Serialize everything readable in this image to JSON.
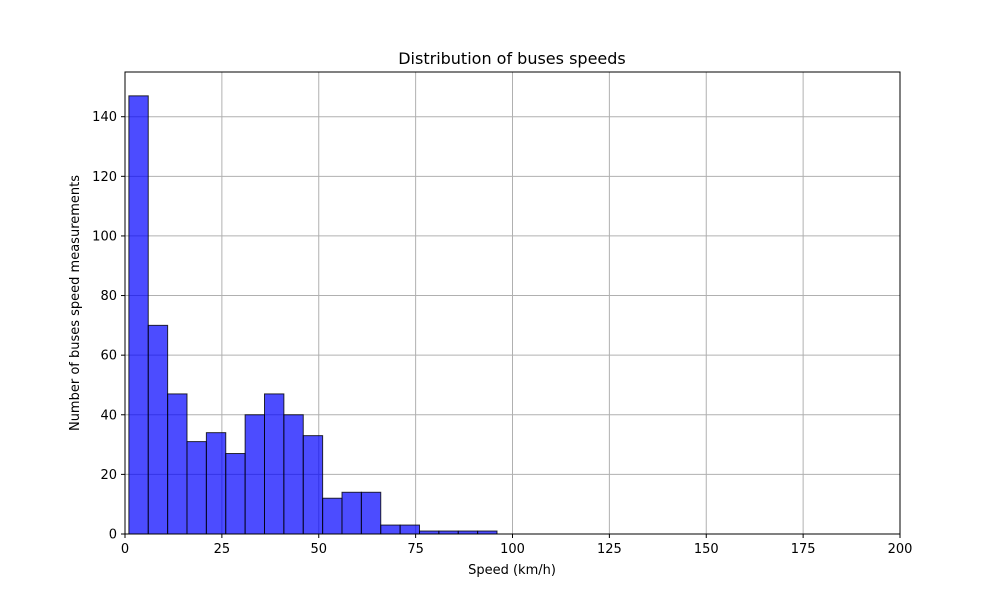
{
  "chart_data": {
    "type": "bar",
    "title": "Distribution of buses speeds",
    "xlabel": "Speed (km/h)",
    "ylabel": "Number of buses speed measurements",
    "xlim": [
      0,
      200
    ],
    "ylim": [
      0,
      155
    ],
    "grid": true,
    "x_ticks": [
      "0",
      "25",
      "50",
      "75",
      "100",
      "125",
      "150",
      "175",
      "200"
    ],
    "y_ticks": [
      "0",
      "20",
      "40",
      "60",
      "80",
      "100",
      "120",
      "140"
    ],
    "bins": [
      {
        "start": 1,
        "end": 6,
        "count": 147
      },
      {
        "start": 6,
        "end": 11,
        "count": 70
      },
      {
        "start": 11,
        "end": 16,
        "count": 47
      },
      {
        "start": 16,
        "end": 21,
        "count": 31
      },
      {
        "start": 21,
        "end": 26,
        "count": 34
      },
      {
        "start": 26,
        "end": 31,
        "count": 27
      },
      {
        "start": 31,
        "end": 36,
        "count": 40
      },
      {
        "start": 36,
        "end": 41,
        "count": 47
      },
      {
        "start": 41,
        "end": 46,
        "count": 40
      },
      {
        "start": 46,
        "end": 51,
        "count": 33
      },
      {
        "start": 51,
        "end": 56,
        "count": 12
      },
      {
        "start": 56,
        "end": 61,
        "count": 14
      },
      {
        "start": 61,
        "end": 66,
        "count": 14
      },
      {
        "start": 66,
        "end": 71,
        "count": 3
      },
      {
        "start": 71,
        "end": 76,
        "count": 3
      },
      {
        "start": 76,
        "end": 81,
        "count": 1
      },
      {
        "start": 81,
        "end": 86,
        "count": 1
      },
      {
        "start": 86,
        "end": 91,
        "count": 1
      },
      {
        "start": 91,
        "end": 96,
        "count": 1
      }
    ],
    "bar_color": "#0000ff",
    "bar_opacity": 0.7,
    "edge_color": "#000000",
    "grid_color": "#b0b0b0"
  }
}
